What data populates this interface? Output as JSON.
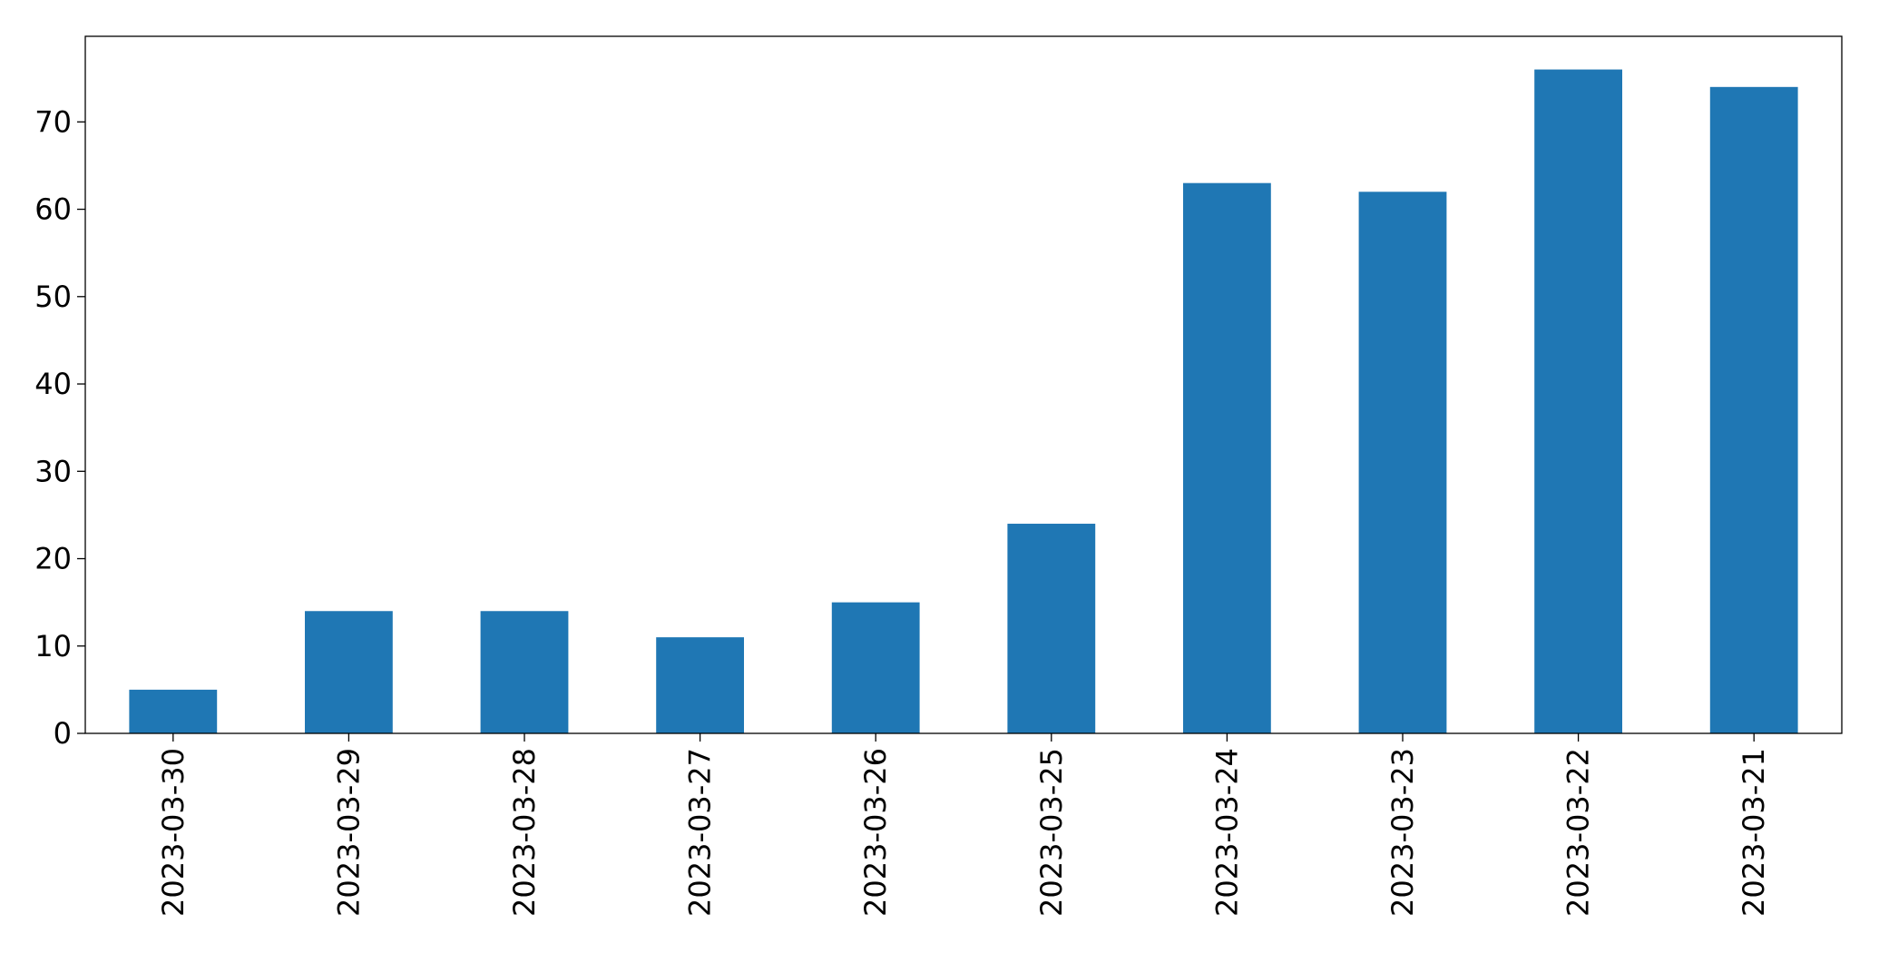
{
  "chart_data": {
    "type": "bar",
    "categories": [
      "2023-03-30",
      "2023-03-29",
      "2023-03-28",
      "2023-03-27",
      "2023-03-26",
      "2023-03-25",
      "2023-03-24",
      "2023-03-23",
      "2023-03-22",
      "2023-03-21"
    ],
    "values": [
      5,
      14,
      14,
      11,
      15,
      24,
      63,
      62,
      76,
      74
    ],
    "color": "#1f77b4",
    "ylim": [
      0,
      79.8
    ],
    "yticks": [
      0,
      10,
      20,
      30,
      40,
      50,
      60,
      70
    ],
    "grid": false
  }
}
